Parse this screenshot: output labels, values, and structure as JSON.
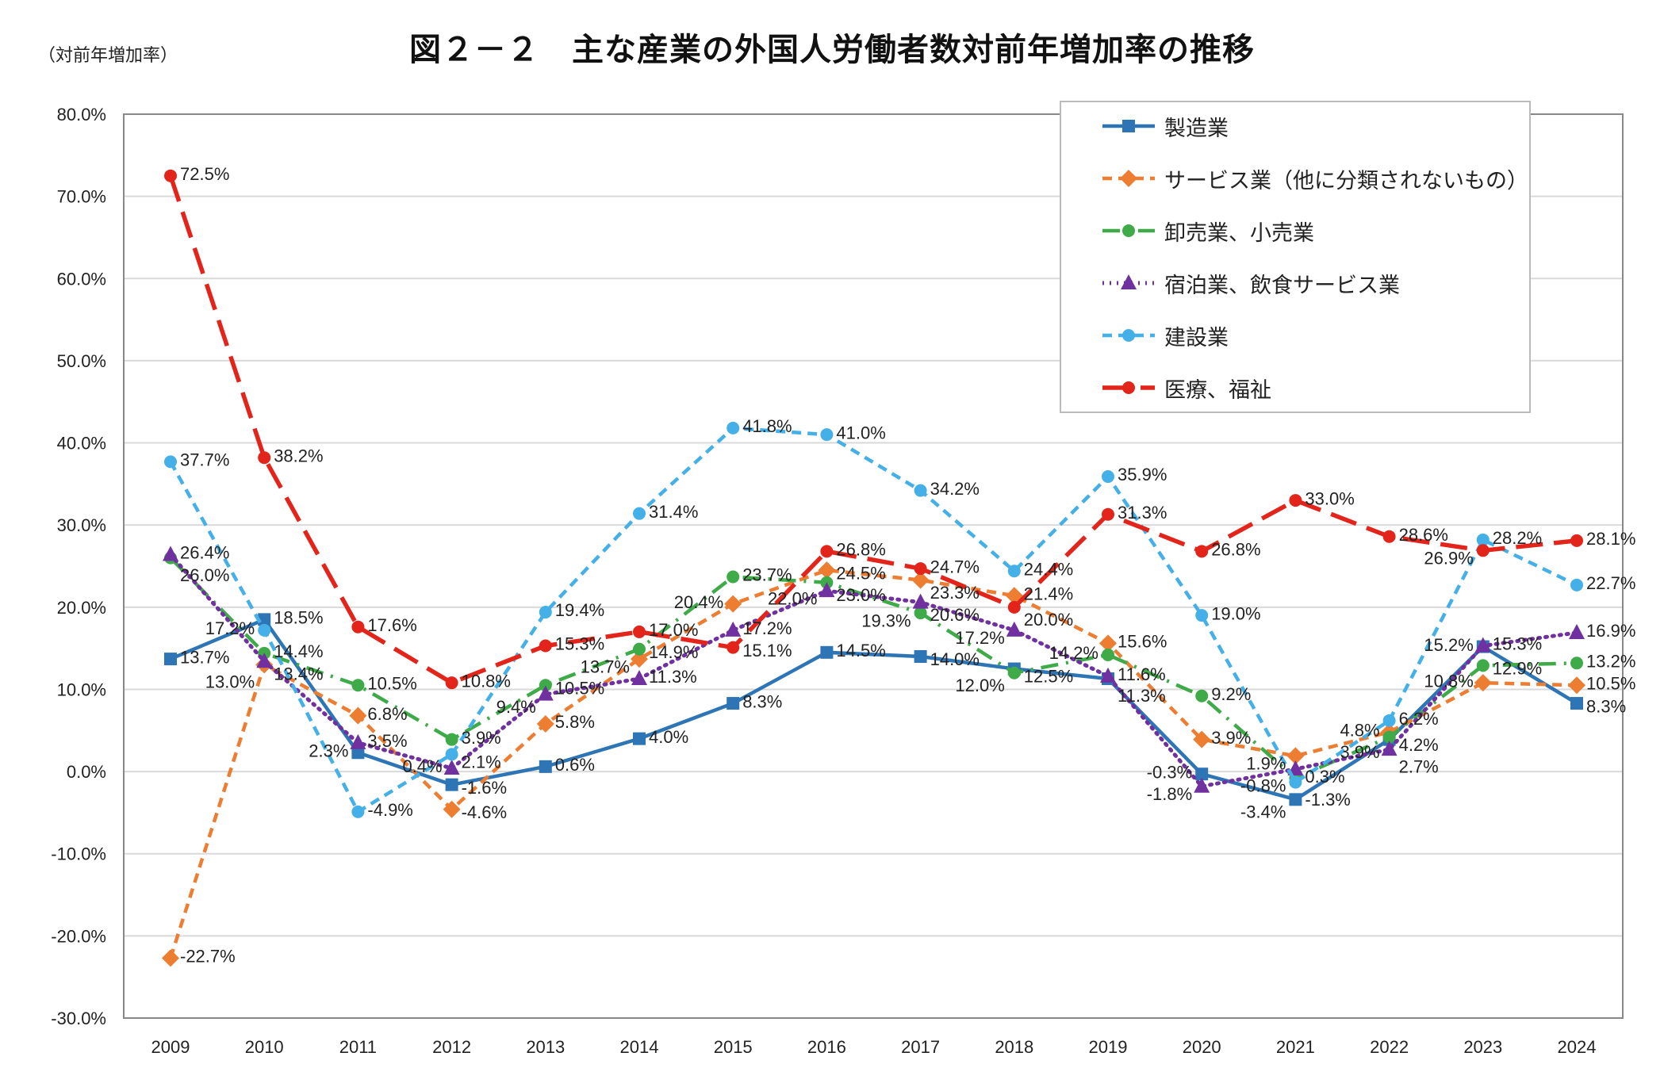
{
  "title": "図２－２　主な産業の外国人労働者数対前年増加率の推移",
  "unit_label": "（対前年増加率）",
  "chart_data": {
    "type": "line",
    "title": "図２－２　主な産業の外国人労働者数対前年増加率の推移",
    "ylabel": "（対前年増加率）",
    "xlabel": "",
    "categories": [
      "2009",
      "2010",
      "2011",
      "2012",
      "2013",
      "2014",
      "2015",
      "2016",
      "2017",
      "2018",
      "2019",
      "2020",
      "2021",
      "2022",
      "2023",
      "2024"
    ],
    "ylim": [
      -30,
      80
    ],
    "yticks": [
      "80.0%",
      "70.0%",
      "60.0%",
      "50.0%",
      "40.0%",
      "30.0%",
      "20.0%",
      "10.0%",
      "0.0%",
      "-10.0%",
      "-20.0%",
      "-30.0%"
    ],
    "grid": true,
    "legend_position": "top-right",
    "series": [
      {
        "name": "製造業",
        "color": "#2E75B6",
        "marker": "square",
        "line": "solid",
        "values": [
          13.7,
          18.5,
          2.3,
          -1.6,
          0.6,
          4.0,
          8.3,
          14.5,
          14.0,
          12.5,
          11.3,
          -0.3,
          -3.4,
          3.9,
          15.2,
          8.3
        ]
      },
      {
        "name": "サービス業（他に分類されないもの）",
        "color": "#ED7D31",
        "marker": "diamond",
        "line": "dash",
        "values": [
          -22.7,
          13.0,
          6.8,
          -4.6,
          5.8,
          13.7,
          20.4,
          24.5,
          23.3,
          21.4,
          15.6,
          3.9,
          1.9,
          4.8,
          10.8,
          10.5
        ]
      },
      {
        "name": "卸売業、小売業",
        "color": "#3EAA48",
        "marker": "circle",
        "line": "dashdot",
        "values": [
          26.0,
          14.4,
          10.5,
          3.9,
          10.5,
          14.9,
          23.7,
          23.0,
          19.3,
          12.0,
          14.2,
          9.2,
          -0.8,
          4.2,
          12.9,
          13.2
        ]
      },
      {
        "name": "宿泊業、飲食サービス業",
        "color": "#7030A0",
        "marker": "triangle",
        "line": "dot",
        "values": [
          26.4,
          13.4,
          3.5,
          0.4,
          9.4,
          11.3,
          17.2,
          22.0,
          20.6,
          17.2,
          11.6,
          -1.8,
          0.3,
          2.7,
          15.3,
          16.9
        ]
      },
      {
        "name": "建設業",
        "color": "#45B0E8",
        "marker": "circle",
        "line": "dash",
        "values": [
          37.7,
          17.2,
          -4.9,
          2.1,
          19.4,
          31.4,
          41.8,
          41.0,
          34.2,
          24.4,
          35.9,
          19.0,
          -1.3,
          6.2,
          28.2,
          22.7
        ]
      },
      {
        "name": "医療、福祉",
        "color": "#E3241B",
        "marker": "circle",
        "line": "longdash",
        "values": [
          72.5,
          38.2,
          17.6,
          10.8,
          15.3,
          17.0,
          15.1,
          26.8,
          24.7,
          20.0,
          31.3,
          26.8,
          33.0,
          28.6,
          26.9,
          28.1
        ]
      }
    ]
  }
}
